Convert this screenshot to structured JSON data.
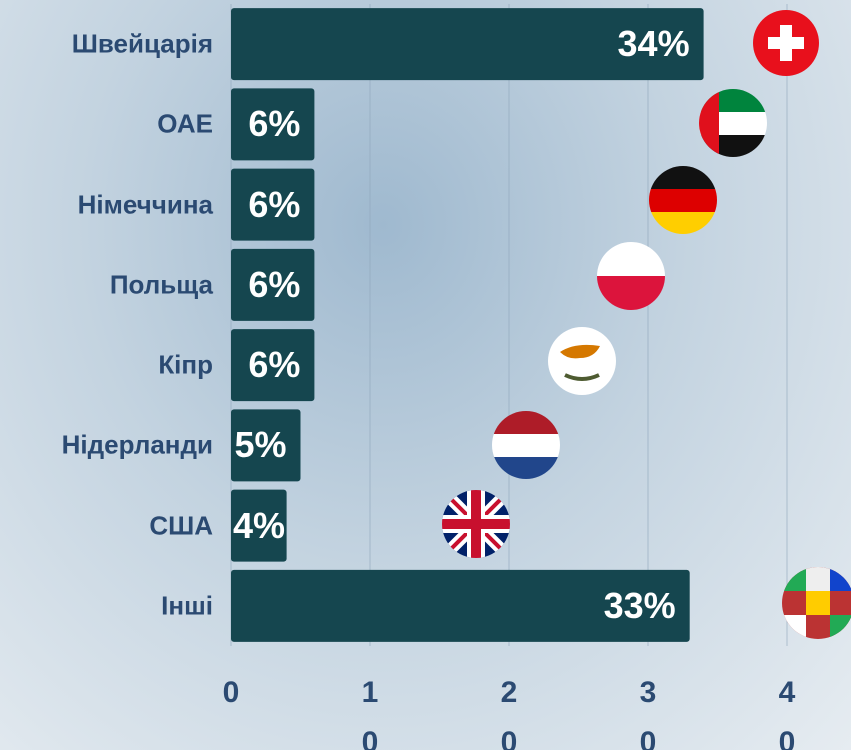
{
  "chart_data": {
    "type": "bar",
    "orientation": "horizontal",
    "categories": [
      "Швейцарія",
      "ОАЕ",
      "Німеччина",
      "Польща",
      "Кіпр",
      "Нідерланди",
      "США",
      "Інші"
    ],
    "values": [
      34,
      6,
      6,
      6,
      6,
      5,
      4,
      33
    ],
    "value_labels": [
      "34%",
      "6%",
      "6%",
      "6%",
      "6%",
      "5%",
      "4%",
      "33%"
    ],
    "color": "#15464f",
    "xlim": [
      0,
      40
    ],
    "xticks": [
      0,
      10,
      20,
      30,
      40
    ],
    "grid": true
  }
}
